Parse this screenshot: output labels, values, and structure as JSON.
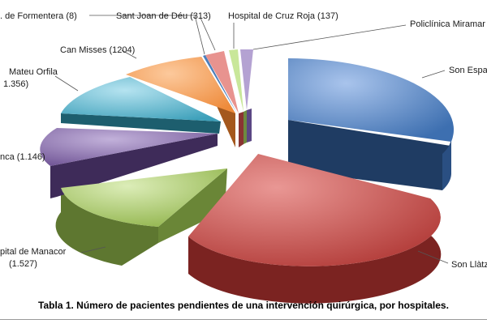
{
  "caption": "Tabla 1. Número de pacientes pendientes de una intervención quirúrgica, por hospitales.",
  "chart_data": {
    "type": "pie",
    "title": "",
    "style": "3d-exploded",
    "slices": [
      {
        "label": "Son Espases",
        "value": 3800,
        "color": "#4a7ebb"
      },
      {
        "label": "Son Llàtzer",
        "value": 3300,
        "color": "#be4b48"
      },
      {
        "label": "Hospital de Manacor",
        "value": 1527,
        "display": "(1.527)",
        "color": "#98b954"
      },
      {
        "label": "Inca",
        "value": 1146,
        "display": "(1.146)",
        "color": "#7d60a0"
      },
      {
        "label": "Mateu Orfila",
        "value": 1356,
        "display": "(1.356)",
        "color": "#46aac4"
      },
      {
        "label": "Can Misses",
        "value": 1204,
        "display": "(1204)",
        "color": "#f59d56"
      },
      {
        "label": "H. de Formentera",
        "value": 8,
        "display": "(8)",
        "color": "#4a7ebb"
      },
      {
        "label": "Sant Joan de Déu",
        "value": 313,
        "display": "(313)",
        "color": "#e06f6b"
      },
      {
        "label": "Hospital de Cruz Roja",
        "value": 137,
        "display": "(137)",
        "color": "#b5d67a"
      },
      {
        "label": "Policlínica Miramar",
        "value": 200,
        "display": "(",
        "color": "#9c85c0"
      }
    ],
    "label_texts": {
      "son_espases": "Son Espas",
      "son_llatzer": "Son Llàtze",
      "manacor_line1": "pital de Manacor",
      "manacor_line2": "(1.527)",
      "inca": "nca (1.146)",
      "mateu_line1": "Mateu Orfila",
      "mateu_line2": "1.356)",
      "can_misses": "Can Misses (1204)",
      "formentera": ". de Formentera (8)",
      "sant_joan": "Sant Joan de Déu (313)",
      "cruz_roja": "Hospital de Cruz Roja (137)",
      "miramar": "Policlínica Miramar ("
    }
  }
}
